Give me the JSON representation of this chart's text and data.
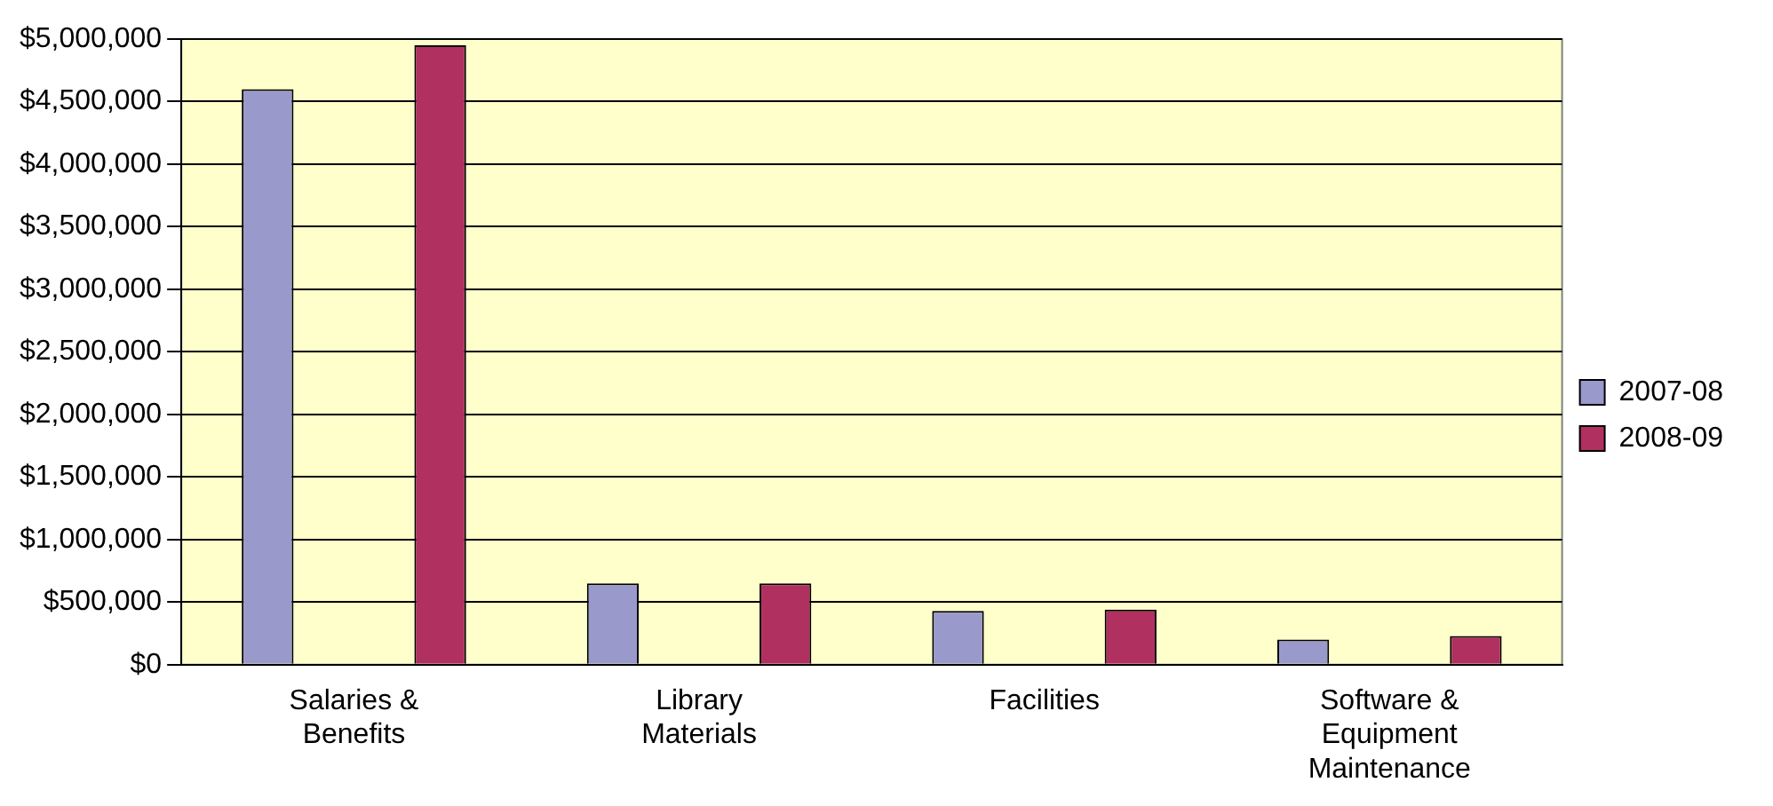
{
  "chart_data": {
    "type": "bar",
    "categories": [
      "Salaries & Benefits",
      "Library Materials",
      "Facilities",
      "Software & Equipment Maintenance"
    ],
    "series": [
      {
        "name": "2007-08",
        "color": "#9999cc",
        "values": [
          4600000,
          650000,
          430000,
          200000
        ]
      },
      {
        "name": "2008-09",
        "color": "#b03060",
        "values": [
          4950000,
          650000,
          440000,
          230000
        ]
      }
    ],
    "ylim": [
      0,
      5000000
    ],
    "yticks": [
      {
        "value": 0,
        "label": "$0"
      },
      {
        "value": 500000,
        "label": "$500,000"
      },
      {
        "value": 1000000,
        "label": "$1,000,000"
      },
      {
        "value": 1500000,
        "label": "$1,500,000"
      },
      {
        "value": 2000000,
        "label": "$2,000,000"
      },
      {
        "value": 2500000,
        "label": "$2,500,000"
      },
      {
        "value": 3000000,
        "label": "$3,000,000"
      },
      {
        "value": 3500000,
        "label": "$3,500,000"
      },
      {
        "value": 4000000,
        "label": "$4,000,000"
      },
      {
        "value": 4500000,
        "label": "$4,500,000"
      },
      {
        "value": 5000000,
        "label": "$5,000,000"
      }
    ],
    "grid": "y",
    "legend": "right"
  }
}
